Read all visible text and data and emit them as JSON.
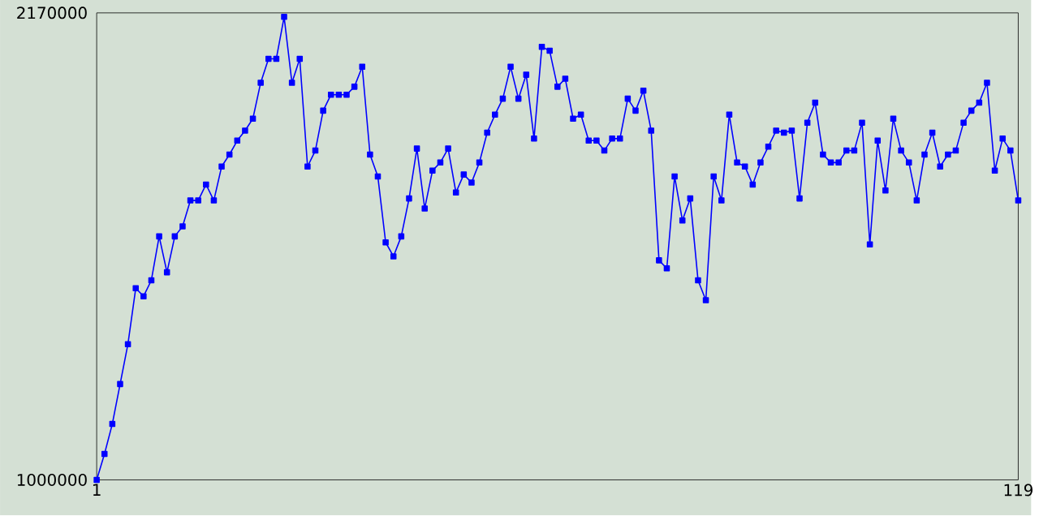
{
  "chart_data": {
    "type": "line",
    "color": "#0000ff",
    "marker": "square",
    "line_style": "solid",
    "grid": false,
    "x": [
      1,
      2,
      3,
      4,
      5,
      6,
      7,
      8,
      9,
      10,
      11,
      12,
      13,
      14,
      15,
      16,
      17,
      18,
      19,
      20,
      21,
      22,
      23,
      24,
      25,
      26,
      27,
      28,
      29,
      30,
      31,
      32,
      33,
      34,
      35,
      36,
      37,
      38,
      39,
      40,
      41,
      42,
      43,
      44,
      45,
      46,
      47,
      48,
      49,
      50,
      51,
      52,
      53,
      54,
      55,
      56,
      57,
      58,
      59,
      60,
      61,
      62,
      63,
      64,
      65,
      66,
      67,
      68,
      69,
      70,
      71,
      72,
      73,
      74,
      75,
      76,
      77,
      78,
      79,
      80,
      81,
      82,
      83,
      84,
      85,
      86,
      87,
      88,
      89,
      90,
      91,
      92,
      93,
      94,
      95,
      96,
      97,
      98,
      99,
      100,
      101,
      102,
      103,
      104,
      105,
      106,
      107,
      108,
      109,
      110,
      111,
      112,
      113,
      114,
      115,
      116,
      117,
      118,
      119
    ],
    "values": [
      1000000,
      1065000,
      1140000,
      1240000,
      1340000,
      1480000,
      1460000,
      1500000,
      1610000,
      1520000,
      1610000,
      1635000,
      1700000,
      1700000,
      1740000,
      1700000,
      1785000,
      1815000,
      1850000,
      1875000,
      1905000,
      1995000,
      2055000,
      2055000,
      2160000,
      1995000,
      2055000,
      1785000,
      1825000,
      1925000,
      1965000,
      1965000,
      1965000,
      1985000,
      2035000,
      1815000,
      1760000,
      1595000,
      1560000,
      1610000,
      1705000,
      1830000,
      1680000,
      1775000,
      1795000,
      1830000,
      1720000,
      1765000,
      1745000,
      1795000,
      1870000,
      1915000,
      1955000,
      2035000,
      1955000,
      2015000,
      1855000,
      2085000,
      2075000,
      1985000,
      2005000,
      1905000,
      1915000,
      1850000,
      1850000,
      1825000,
      1855000,
      1855000,
      1955000,
      1925000,
      1975000,
      1875000,
      1550000,
      1530000,
      1760000,
      1650000,
      1705000,
      1500000,
      1450000,
      1760000,
      1700000,
      1915000,
      1795000,
      1785000,
      1740000,
      1795000,
      1835000,
      1875000,
      1870000,
      1875000,
      1705000,
      1895000,
      1945000,
      1815000,
      1795000,
      1795000,
      1825000,
      1825000,
      1895000,
      1590000,
      1850000,
      1725000,
      1905000,
      1825000,
      1795000,
      1700000,
      1815000,
      1870000,
      1785000,
      1815000,
      1825000,
      1895000,
      1925000,
      1945000,
      1995000,
      1775000,
      1855000,
      1825000,
      1700000
    ],
    "xlim": [
      1,
      119
    ],
    "xticks": [
      1,
      119
    ],
    "ylim": [
      1000000,
      2170000
    ],
    "yticks": [
      1000000,
      2170000
    ]
  }
}
